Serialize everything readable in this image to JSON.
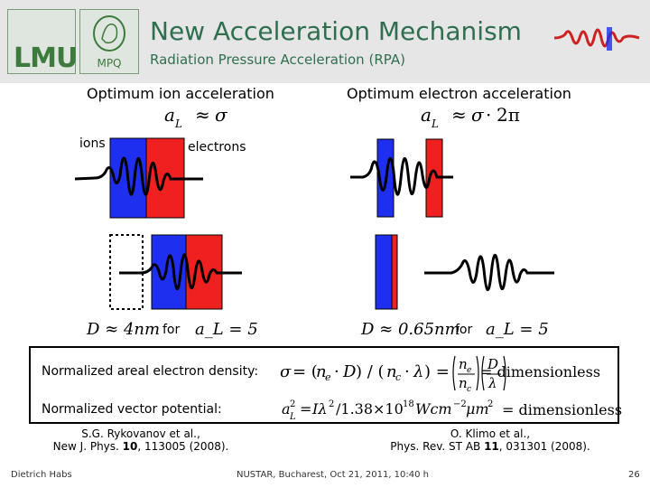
{
  "header": {
    "title": "New Acceleration Mechanism",
    "subtitle": "Radiation Pressure Acceleration (RPA)",
    "logo_left": "LMU",
    "logo_right": "MPQ"
  },
  "left": {
    "heading": "Optimum ion acceleration",
    "formula": "a_L ≈ σ",
    "ions_label": "ions",
    "electrons_label": "electrons",
    "condition_D": "D ≈ 4nm",
    "for_label": "for",
    "condition_a": "a_L = 5"
  },
  "right": {
    "heading": "Optimum electron acceleration",
    "formula": "a_L ≈ σ · 2π",
    "condition_D": "D ≈ 0.65nm",
    "for_label": "for",
    "condition_a": "a_L = 5"
  },
  "definitions": {
    "density_label": "Normalized areal electron density:",
    "density_result": "= dimensionless",
    "potential_label": "Normalized vector potential:",
    "potential_result": "= dimensionless"
  },
  "references": {
    "left_line1": "S.G. Rykovanov et al.,",
    "left_line2_prefix": "New J. Phys. ",
    "left_line2_bold": "10",
    "left_line2_suffix": ", 113005 (2008).",
    "right_line1": "O. Klimo et al.,",
    "right_line2_prefix": "Phys. Rev. ST AB ",
    "right_line2_bold": "11",
    "right_line2_suffix": ", 031301 (2008)."
  },
  "footer": {
    "author": "Dietrich Habs",
    "event": "NUSTAR, Bucharest, Oct 21, 2011, 10:40 h",
    "page": "26"
  },
  "colors": {
    "ion_blue": "#1f2ff0",
    "electron_red": "#ee2020",
    "title_green": "#2f6f4f"
  }
}
